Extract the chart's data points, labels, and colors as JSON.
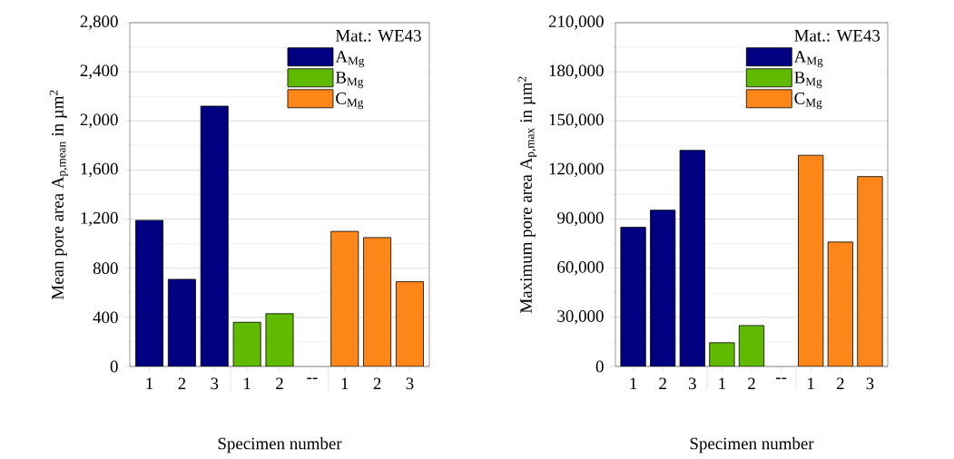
{
  "chart_data": [
    {
      "type": "bar",
      "xlabel": "Specimen number",
      "ylabel": "Mean pore area A$_{p,mean}$ in µm$^{2}$",
      "categories": [
        "1",
        "2",
        "3",
        "1",
        "2",
        "--",
        "1",
        "2",
        "3"
      ],
      "series": [
        {
          "name": "A$_{Mg}$",
          "color": "#000080",
          "values": [
            1190,
            710,
            2120,
            null,
            null,
            null,
            null,
            null,
            null
          ]
        },
        {
          "name": "B$_{Mg}$",
          "color": "#5fba00",
          "values": [
            null,
            null,
            null,
            360,
            430,
            null,
            null,
            null,
            null
          ]
        },
        {
          "name": "C$_{Mg}$",
          "color": "#ff8719",
          "values": [
            null,
            null,
            null,
            null,
            null,
            null,
            1100,
            1050,
            690
          ]
        }
      ],
      "ylim": [
        0,
        2800
      ],
      "yticks": [
        0,
        400,
        800,
        {
          "value": 1200,
          "label": "1,200"
        },
        {
          "value": 1600,
          "label": "1,600"
        },
        {
          "value": 2000,
          "label": "2,000"
        },
        {
          "value": 2400,
          "label": "2,400"
        },
        {
          "value": 2800,
          "label": "2,800"
        }
      ],
      "grid": "y",
      "legend": "top right",
      "legend_title": "Mat.: WE43"
    },
    {
      "type": "bar",
      "xlabel": "Specimen number",
      "ylabel": "Maximum pore area A$_{p,max}$ in µm$^{2}$",
      "categories": [
        "1",
        "2",
        "3",
        "1",
        "2",
        "--",
        "1",
        "2",
        "3"
      ],
      "series": [
        {
          "name": "A$_{Mg}$",
          "color": "#000080",
          "values": [
            85000,
            95500,
            132000,
            null,
            null,
            null,
            null,
            null,
            null
          ]
        },
        {
          "name": "B$_{Mg}$",
          "color": "#5fba00",
          "values": [
            null,
            null,
            null,
            14500,
            25000,
            null,
            null,
            null,
            null
          ]
        },
        {
          "name": "C$_{Mg}$",
          "color": "#ff8719",
          "values": [
            null,
            null,
            null,
            null,
            null,
            null,
            129000,
            76000,
            116000
          ]
        }
      ],
      "ylim": [
        0,
        210000
      ],
      "yticks": [
        0,
        {
          "value": 30000,
          "label": "30,000"
        },
        {
          "value": 60000,
          "label": "60,000"
        },
        {
          "value": 90000,
          "label": "90,000"
        },
        {
          "value": 120000,
          "label": "120,000"
        },
        {
          "value": 150000,
          "label": "150,000"
        },
        {
          "value": 180000,
          "label": "180,000"
        },
        {
          "value": 210000,
          "label": "210,000"
        }
      ],
      "grid": "y",
      "legend": "top right",
      "legend_title": "Mat.: WE43"
    }
  ]
}
